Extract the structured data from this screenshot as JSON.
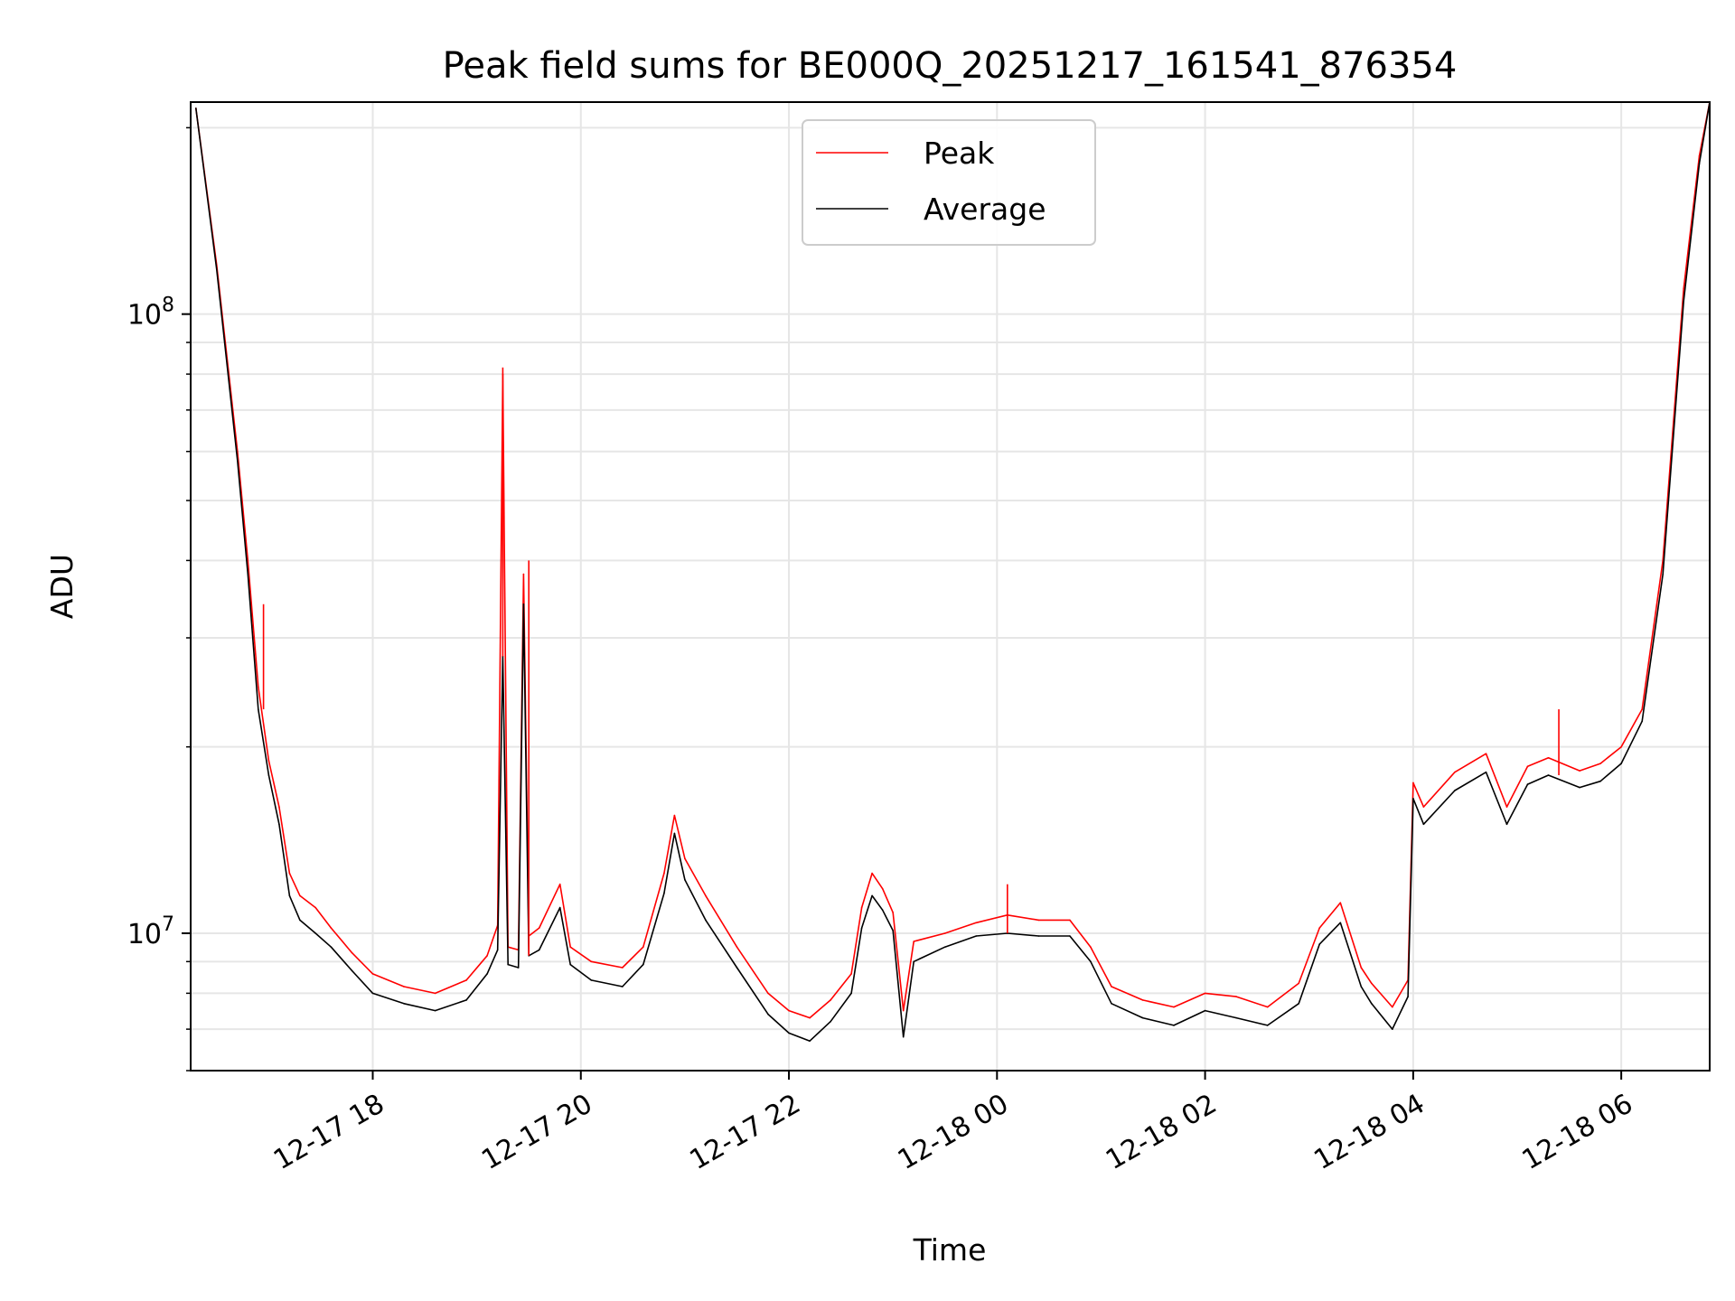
{
  "chart_data": {
    "type": "line",
    "title": "Peak field sums for BE000Q_20251217_161541_876354",
    "xlabel": "Time",
    "ylabel": "ADU",
    "yscale": "log",
    "ylim": [
      6000000,
      220000000
    ],
    "xlim_hours": [
      16.25,
      30.85
    ],
    "grid": true,
    "legend_location": "upper center",
    "x_ticks": [
      {
        "hour": 18,
        "label": "12-17 18"
      },
      {
        "hour": 20,
        "label": "12-17 20"
      },
      {
        "hour": 22,
        "label": "12-17 22"
      },
      {
        "hour": 24,
        "label": "12-18 00"
      },
      {
        "hour": 26,
        "label": "12-18 02"
      },
      {
        "hour": 28,
        "label": "12-18 04"
      },
      {
        "hour": 30,
        "label": "12-18 06"
      }
    ],
    "y_ticks": [
      {
        "value": 10000000,
        "base": "10",
        "exp": "7"
      },
      {
        "value": 100000000,
        "base": "10",
        "exp": "8"
      }
    ],
    "x_hours": [
      16.3,
      16.5,
      16.7,
      16.8,
      16.9,
      17.0,
      17.1,
      17.2,
      17.3,
      17.45,
      17.6,
      17.8,
      18.0,
      18.3,
      18.6,
      18.9,
      19.1,
      19.2,
      19.25,
      19.3,
      19.4,
      19.45,
      19.5,
      19.6,
      19.8,
      19.9,
      20.1,
      20.4,
      20.6,
      20.8,
      20.9,
      21.0,
      21.2,
      21.5,
      21.8,
      22.0,
      22.2,
      22.4,
      22.6,
      22.7,
      22.8,
      22.9,
      23.0,
      23.1,
      23.2,
      23.5,
      23.8,
      24.1,
      24.4,
      24.7,
      24.9,
      25.1,
      25.4,
      25.7,
      26.0,
      26.3,
      26.6,
      26.9,
      27.1,
      27.3,
      27.5,
      27.6,
      27.8,
      27.95,
      28.0,
      28.1,
      28.4,
      28.7,
      28.9,
      29.1,
      29.3,
      29.6,
      29.8,
      30.0,
      30.2,
      30.4,
      30.6,
      30.75,
      30.85
    ],
    "series": [
      {
        "name": "Peak",
        "color": "#ff0000",
        "values": [
          215000000,
          120000000,
          60000000,
          40000000,
          25000000,
          19000000,
          16000000,
          12500000,
          11500000,
          11000000,
          10200000,
          9300000,
          8600000,
          8200000,
          8000000,
          8400000,
          9200000,
          10300000,
          80000000,
          9500000,
          9400000,
          38000000,
          9900000,
          10200000,
          12000000,
          9500000,
          9000000,
          8800000,
          9500000,
          12500000,
          15500000,
          13200000,
          11500000,
          9500000,
          8000000,
          7500000,
          7300000,
          7800000,
          8600000,
          11000000,
          12500000,
          11800000,
          10800000,
          7500000,
          9700000,
          10000000,
          10400000,
          10700000,
          10500000,
          10500000,
          9500000,
          8200000,
          7800000,
          7600000,
          8000000,
          7900000,
          7600000,
          8300000,
          10200000,
          11200000,
          8800000,
          8300000,
          7600000,
          8400000,
          17500000,
          16000000,
          18200000,
          19500000,
          16000000,
          18600000,
          19200000,
          18300000,
          18800000,
          20000000,
          23000000,
          40000000,
          110000000,
          180000000,
          220000000
        ]
      },
      {
        "name": "Average",
        "color": "#000000",
        "values": [
          215000000,
          118000000,
          58000000,
          38000000,
          23000000,
          18000000,
          15000000,
          11500000,
          10500000,
          10000000,
          9500000,
          8700000,
          8000000,
          7700000,
          7500000,
          7800000,
          8600000,
          9400000,
          28000000,
          8900000,
          8800000,
          34000000,
          9200000,
          9400000,
          11000000,
          8900000,
          8400000,
          8200000,
          8900000,
          11600000,
          14500000,
          12200000,
          10500000,
          8800000,
          7400000,
          6900000,
          6700000,
          7200000,
          8000000,
          10200000,
          11500000,
          10900000,
          10100000,
          6800000,
          9000000,
          9500000,
          9900000,
          10000000,
          9900000,
          9900000,
          9000000,
          7700000,
          7300000,
          7100000,
          7500000,
          7300000,
          7100000,
          7700000,
          9600000,
          10400000,
          8200000,
          7700000,
          7000000,
          7900000,
          16500000,
          15000000,
          17000000,
          18200000,
          15000000,
          17400000,
          18000000,
          17200000,
          17600000,
          18800000,
          22000000,
          38000000,
          105000000,
          175000000,
          220000000
        ]
      }
    ],
    "annotations": [
      {
        "hour": 16.95,
        "value": 34000000,
        "series": "Peak"
      },
      {
        "hour": 19.25,
        "value": 82000000,
        "series": "Peak"
      },
      {
        "hour": 19.5,
        "value": 40000000,
        "series": "Peak"
      },
      {
        "hour": 24.1,
        "value": 12000000,
        "series": "Peak"
      },
      {
        "hour": 29.4,
        "value": 23000000,
        "series": "Peak"
      }
    ]
  }
}
